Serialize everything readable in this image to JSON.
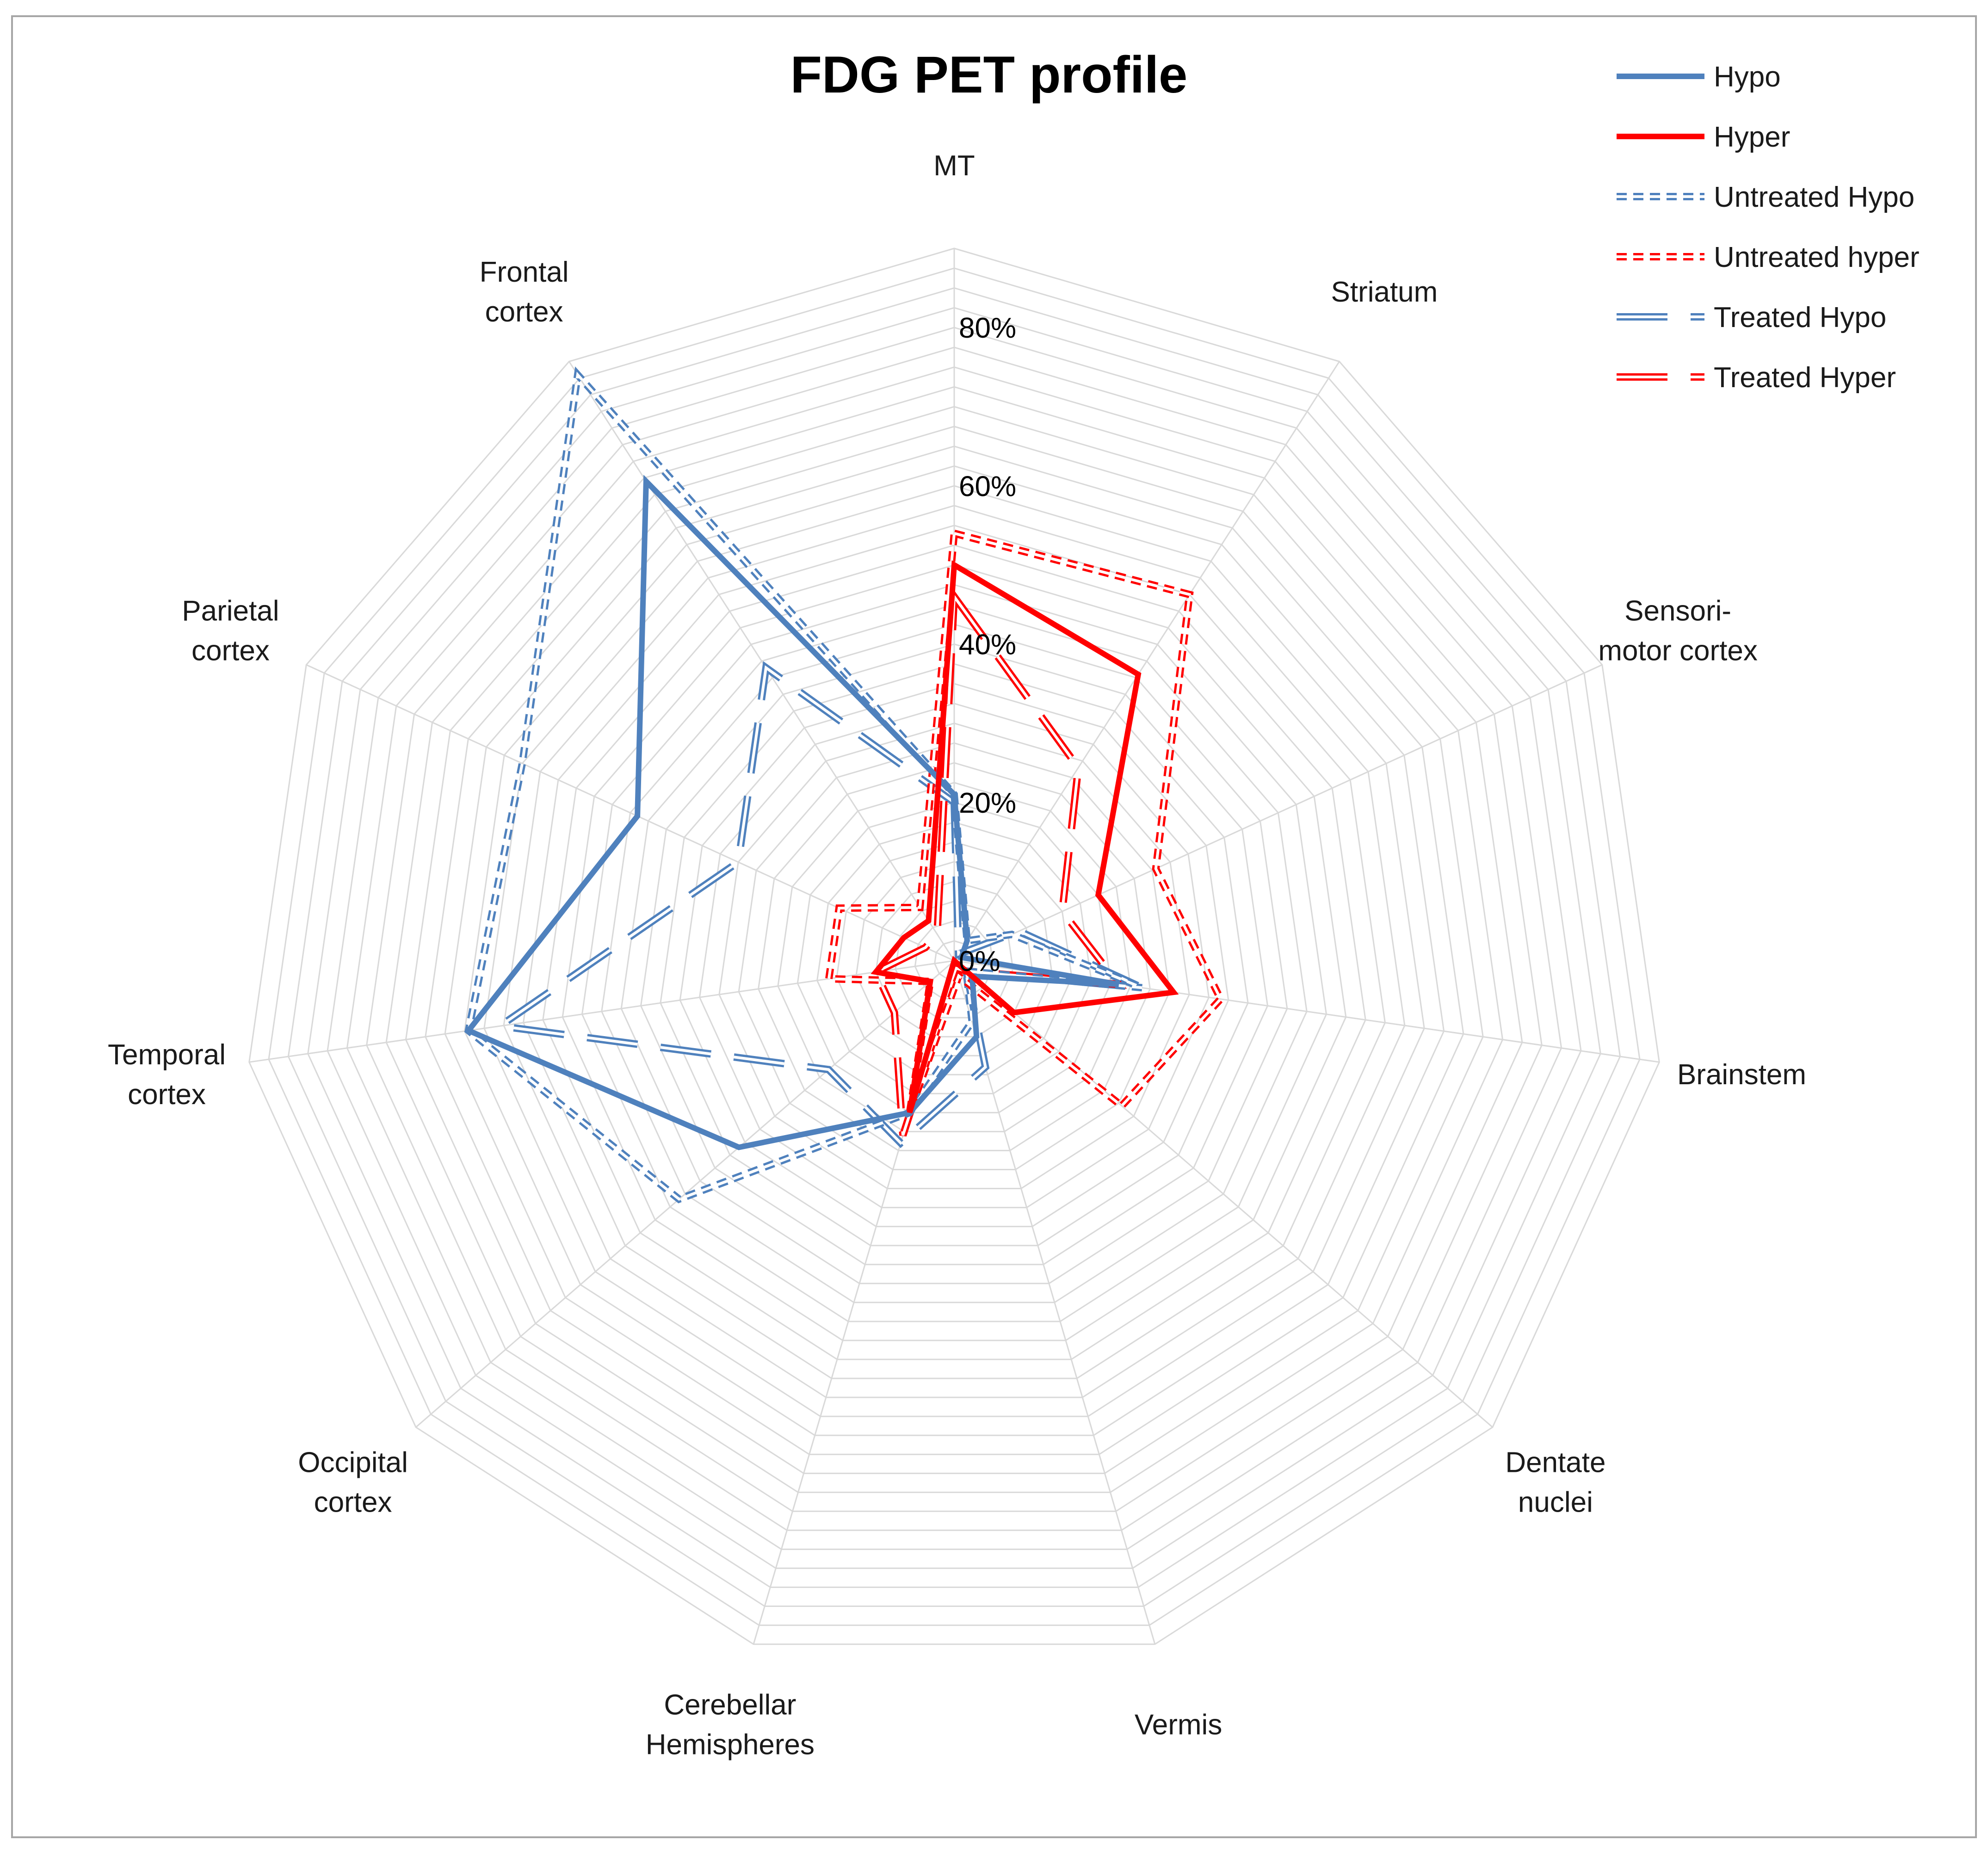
{
  "chart_data": {
    "type": "radar",
    "title": "FDG PET profile",
    "categories": [
      "MT",
      "Striatum",
      "Sensori- motor cortex",
      "Brainstem",
      "Dentate nuclei",
      "Vermis",
      "Cerebellar Hemispheres",
      "Occipital cortex",
      "Temporal cortex",
      "Parietal cortex",
      "Frontal cortex"
    ],
    "category_lines": [
      [
        "MT"
      ],
      [
        "Striatum"
      ],
      [
        "Sensori-",
        "motor cortex"
      ],
      [
        "Brainstem"
      ],
      [
        "Dentate",
        "nuclei"
      ],
      [
        "Vermis"
      ],
      [
        "Cerebellar",
        "Hemispheres"
      ],
      [
        "Occipital",
        "cortex"
      ],
      [
        "Temporal",
        "cortex"
      ],
      [
        "Parietal",
        "cortex"
      ],
      [
        "Frontal",
        "cortex"
      ]
    ],
    "tick_values": [
      0,
      20,
      40,
      60,
      80
    ],
    "tick_labels": [
      "0%",
      "20%",
      "40%",
      "60%",
      "80%"
    ],
    "range": [
      0,
      90
    ],
    "grid_step": 2.5,
    "legend_position": "top-right",
    "series": [
      {
        "name": "Hypo",
        "color": "#4f81bd",
        "style": "solid",
        "values": [
          21,
          3,
          1,
          21,
          3,
          10,
          20,
          36,
          62,
          44,
          72
        ]
      },
      {
        "name": "Hyper",
        "color": "#ff0000",
        "style": "solid",
        "values": [
          50,
          43,
          20,
          28,
          10,
          0,
          20,
          4,
          10,
          7,
          6
        ]
      },
      {
        "name": "Untreated Hypo",
        "color": "#4f81bd",
        "style": "dotted",
        "values": [
          21,
          3,
          8,
          24,
          2,
          8,
          20,
          46,
          62,
          60,
          88
        ]
      },
      {
        "name": "Untreated hyper",
        "color": "#ff0000",
        "style": "dotted",
        "values": [
          54,
          55,
          28,
          34,
          28,
          2,
          20,
          4,
          16,
          16,
          8
        ]
      },
      {
        "name": "Treated Hypo",
        "color": "#4f81bd",
        "style": "dashed",
        "values": [
          20,
          1,
          9,
          24,
          2,
          14,
          24,
          21,
          58,
          30,
          44
        ]
      },
      {
        "name": "Treated Hyper",
        "color": "#ff0000",
        "style": "dashed",
        "values": [
          46,
          29,
          15,
          21,
          2,
          1,
          23,
          10,
          10,
          4,
          4
        ]
      }
    ]
  }
}
